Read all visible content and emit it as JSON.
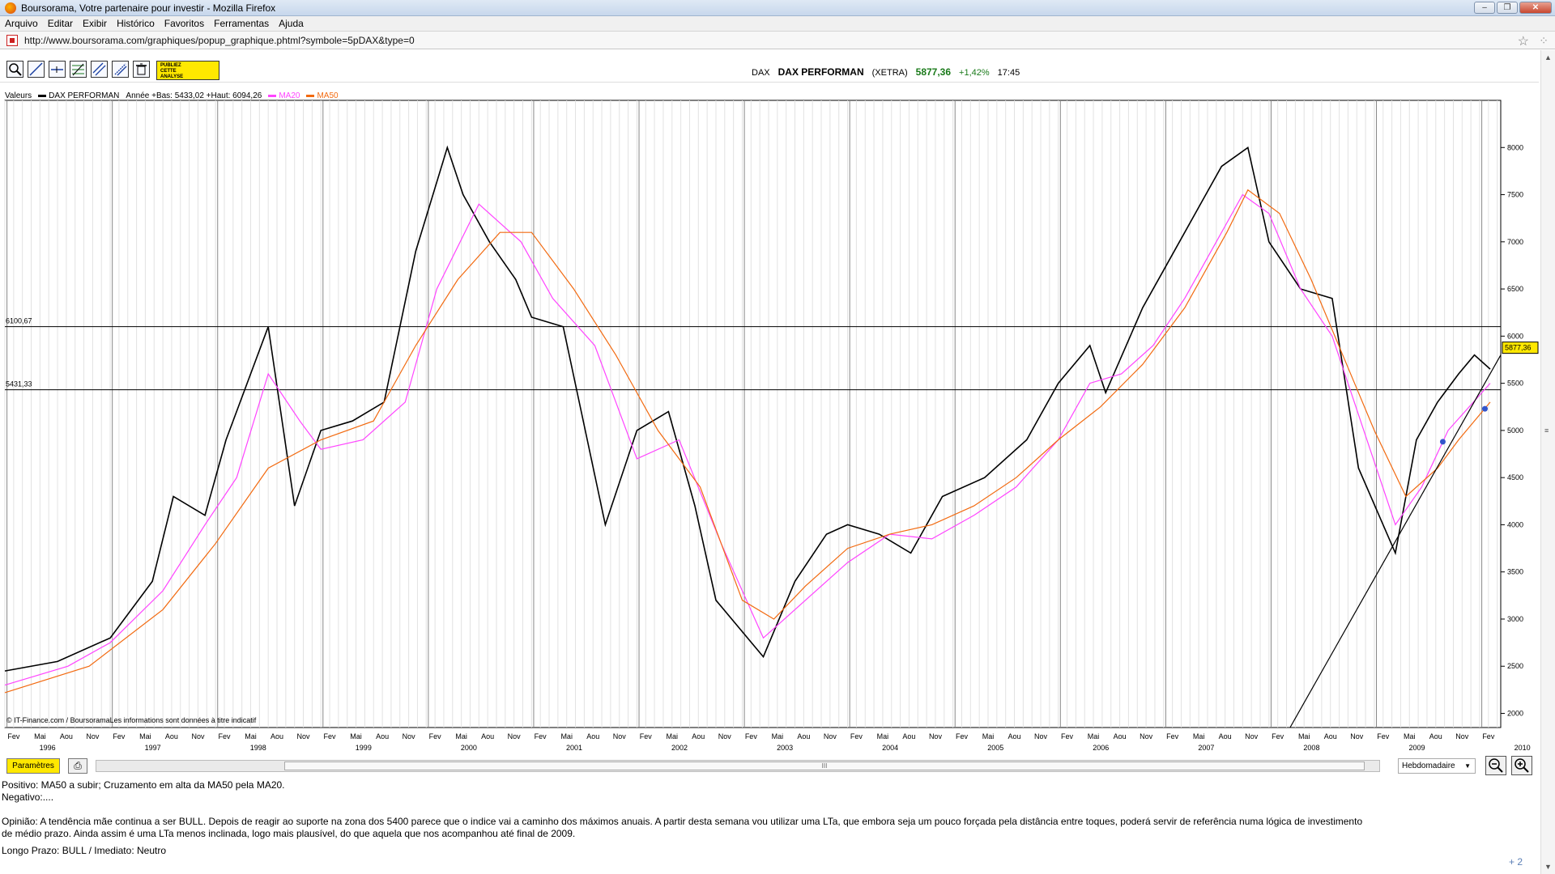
{
  "browser": {
    "window_title": "Boursorama, Votre partenaire pour investir - Mozilla Firefox",
    "menu": [
      "Arquivo",
      "Editar",
      "Exibir",
      "Histórico",
      "Favoritos",
      "Ferramentas",
      "Ajuda"
    ],
    "url": "http://www.boursorama.com/graphiques/popup_graphique.phtml?symbole=5pDAX&type=0"
  },
  "toolbar": {
    "publiez_label": "PUBLIEZ CETTE ANALYSE",
    "tools": [
      "zoom-tool-icon",
      "trendline-icon",
      "horizontal-line-icon",
      "fibonacci-icon",
      "channel-icon",
      "parallel-lines-icon",
      "trash-icon"
    ]
  },
  "quote": {
    "market": "DAX",
    "name": "DAX PERFORMAN",
    "exchange": "(XETRA)",
    "price": "5877,36",
    "change": "+1,42%",
    "time": "17:45"
  },
  "legend": {
    "label": "Valeurs",
    "series_name": "DAX PERFORMAN",
    "range_text": "Année +Bas: 5433,02 +Haut: 6094,26",
    "ma20": "MA20",
    "ma50": "MA50"
  },
  "chart_data": {
    "type": "line",
    "title": "DAX PERFORMAN",
    "y_ticks": [
      2000,
      2500,
      3000,
      3500,
      4000,
      4500,
      5000,
      5500,
      6000,
      6500,
      7000,
      7500,
      8000
    ],
    "ylim": [
      1850,
      8500
    ],
    "xlim": [
      1996.0,
      2010.2
    ],
    "x_month_labels": [
      "Fev",
      "Mai",
      "Aou",
      "Nov"
    ],
    "year_labels": [
      "1996",
      "1997",
      "1998",
      "1999",
      "2000",
      "2001",
      "2002",
      "2003",
      "2004",
      "2005",
      "2006",
      "2007",
      "2008",
      "2009",
      "2010"
    ],
    "horizontal_levels": [
      {
        "value": 6100.67,
        "label": "6100,67"
      },
      {
        "value": 5431.33,
        "label": "5431,33"
      }
    ],
    "last_price_label": "5877,36",
    "source_note": "© IT-Finance.com / BoursoramaLes informations sont données à titre indicatif",
    "series": [
      {
        "name": "DAX PERFORMAN",
        "color": "#000000",
        "x": [
          1996.0,
          1996.5,
          1997.0,
          1997.4,
          1997.6,
          1997.9,
          1998.1,
          1998.5,
          1998.75,
          1999.0,
          1999.3,
          1999.6,
          1999.9,
          2000.2,
          2000.35,
          2000.6,
          2000.85,
          2001.0,
          2001.3,
          2001.7,
          2002.0,
          2002.3,
          2002.55,
          2002.75,
          2003.2,
          2003.5,
          2003.8,
          2004.0,
          2004.3,
          2004.6,
          2004.9,
          2005.3,
          2005.7,
          2006.0,
          2006.3,
          2006.45,
          2006.8,
          2007.0,
          2007.4,
          2007.55,
          2007.8,
          2008.0,
          2008.3,
          2008.6,
          2008.85,
          2009.2,
          2009.4,
          2009.6,
          2009.8,
          2009.95,
          2010.1
        ],
        "y": [
          2450,
          2550,
          2800,
          3400,
          4300,
          4100,
          4900,
          6100,
          4200,
          5000,
          5100,
          5300,
          6900,
          8000,
          7500,
          7000,
          6600,
          6200,
          6100,
          4000,
          5000,
          5200,
          4200,
          3200,
          2600,
          3400,
          3900,
          4000,
          3900,
          3700,
          4300,
          4500,
          4900,
          5500,
          5900,
          5400,
          6300,
          6700,
          7500,
          7800,
          8000,
          7000,
          6500,
          6400,
          4600,
          3700,
          4900,
          5300,
          5600,
          5800,
          5650
        ]
      },
      {
        "name": "MA20",
        "color": "#ff44ff",
        "x": [
          1996.0,
          1996.6,
          1997.0,
          1997.5,
          1997.9,
          1998.2,
          1998.5,
          1998.8,
          1999.0,
          1999.4,
          1999.8,
          2000.1,
          2000.5,
          2000.9,
          2001.2,
          2001.6,
          2002.0,
          2002.4,
          2002.8,
          2003.2,
          2003.6,
          2004.0,
          2004.4,
          2004.8,
          2005.2,
          2005.6,
          2006.0,
          2006.3,
          2006.6,
          2006.9,
          2007.2,
          2007.5,
          2007.75,
          2008.0,
          2008.3,
          2008.6,
          2008.9,
          2009.2,
          2009.45,
          2009.7,
          2010.1
        ],
        "y": [
          2300,
          2500,
          2750,
          3300,
          4000,
          4500,
          5600,
          5100,
          4800,
          4900,
          5300,
          6500,
          7400,
          7000,
          6400,
          5900,
          4700,
          4900,
          3800,
          2800,
          3200,
          3600,
          3900,
          3850,
          4100,
          4400,
          4900,
          5500,
          5600,
          5900,
          6400,
          7000,
          7500,
          7300,
          6500,
          6000,
          5000,
          4000,
          4400,
          5000,
          5500
        ]
      },
      {
        "name": "MA50",
        "color": "#f26a10",
        "x": [
          1996.0,
          1996.8,
          1997.5,
          1998.0,
          1998.5,
          1999.0,
          1999.5,
          1999.9,
          2000.3,
          2000.7,
          2001.0,
          2001.4,
          2001.8,
          2002.2,
          2002.6,
          2003.0,
          2003.3,
          2003.6,
          2004.0,
          2004.4,
          2004.8,
          2005.2,
          2005.6,
          2006.0,
          2006.4,
          2006.8,
          2007.2,
          2007.6,
          2007.8,
          2008.1,
          2008.4,
          2008.7,
          2009.0,
          2009.3,
          2009.6,
          2009.8,
          2010.1
        ],
        "y": [
          2220,
          2500,
          3100,
          3800,
          4600,
          4900,
          5100,
          5900,
          6600,
          7100,
          7100,
          6500,
          5800,
          5000,
          4400,
          3200,
          3000,
          3350,
          3750,
          3900,
          4000,
          4200,
          4500,
          4900,
          5250,
          5700,
          6300,
          7100,
          7550,
          7300,
          6600,
          5800,
          5000,
          4300,
          4600,
          4900,
          5300
        ]
      },
      {
        "name": "trendline",
        "color": "#000000",
        "x": [
          2008.2,
          2010.2
        ],
        "y": [
          1850,
          5800
        ]
      }
    ],
    "markers": [
      {
        "x": 2009.65,
        "y": 4880,
        "color": "#3355cc"
      },
      {
        "x": 2010.05,
        "y": 5230,
        "color": "#3355cc"
      }
    ]
  },
  "controls": {
    "params_label": "Paramètres",
    "period_label": "Hebdomadaire",
    "scroll_grip": "III"
  },
  "commentary": {
    "line1": "Positivo: MA50 a subir; Cruzamento em alta da MA50 pela MA20.",
    "line2": "Negativo:....",
    "line3": "Opinião: A tendência mãe continua a ser BULL. Depois de reagir ao suporte na zona dos 5400 parece que o indice vai a caminho dos máximos anuais. A partir desta semana vou utilizar uma LTa, que embora seja um pouco forçada pela distância entre toques, poderá servir de referência numa lógica de investimento",
    "line4": "de médio prazo. Ainda assim é uma LTa menos inclinada, logo mais plausível, do que aquela que nos acompanhou até final de 2009.",
    "line5": "Longo Prazo: BULL  /  Imediato: Neutro",
    "plus": "+ 2"
  },
  "colors": {
    "accent_yellow": "#ffe800",
    "price_green": "#1a7a1a",
    "ma20": "#ff44ff",
    "ma50": "#f26a10"
  }
}
